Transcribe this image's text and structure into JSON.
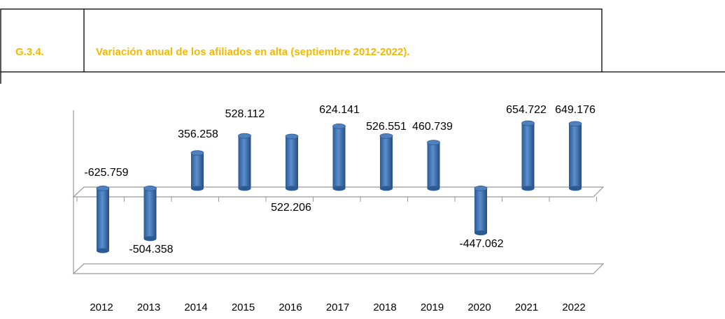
{
  "header": {
    "code": "G.3.4.",
    "title": "Variación anual de los afiliados en alta (septiembre 2012-2022)."
  },
  "chart_data": {
    "type": "bar",
    "categories": [
      "2012",
      "2013",
      "2014",
      "2015",
      "2016",
      "2017",
      "2018",
      "2019",
      "2020",
      "2021",
      "2022"
    ],
    "values": [
      -625759,
      -504358,
      356258,
      528112,
      522206,
      624141,
      526551,
      460739,
      -447062,
      654722,
      649176
    ],
    "value_labels": [
      "-625.759",
      "-504.358",
      "356.258",
      "528.112",
      "522.206",
      "624.141",
      "526.551",
      "460.739",
      "-447.062",
      "654.722",
      "649.176"
    ],
    "color": "#4f81bd",
    "ylim": [
      -800000,
      750000
    ]
  }
}
